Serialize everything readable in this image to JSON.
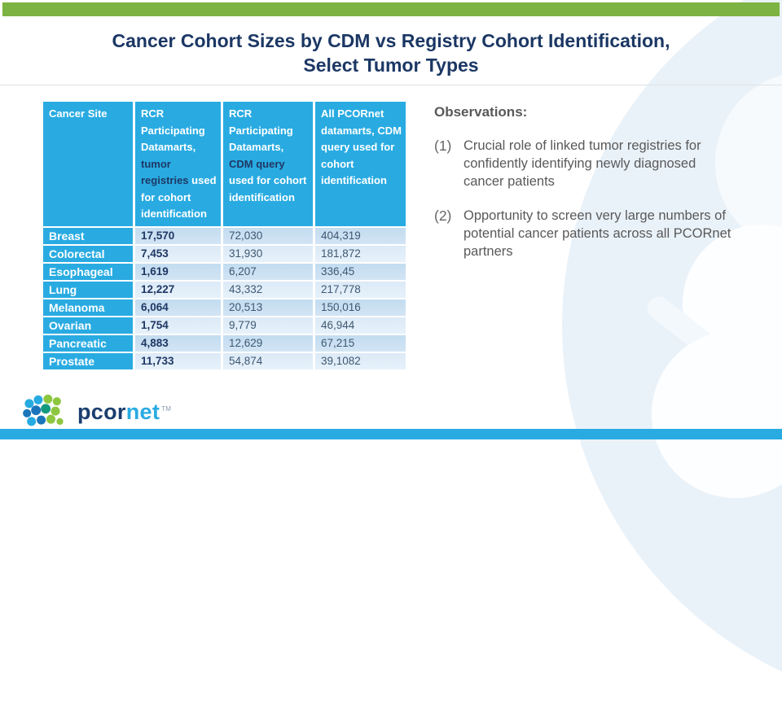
{
  "title": {
    "line1": "Cancer Cohort Sizes by CDM vs Registry Cohort Identification,",
    "line2": "Select Tumor Types"
  },
  "table": {
    "header": {
      "cancer_site": "Cancer Site",
      "col2_pre": "RCR Participating Datamarts,",
      "col2_em": "tumor registries",
      "col2_post": "used for cohort identification",
      "col3_pre": "RCR Participating Datamarts,",
      "col3_em": "CDM query",
      "col3_post": "used for cohort identification",
      "col4": "All PCORnet datamarts, CDM query used for cohort identification"
    },
    "rows": [
      {
        "site": "Breast",
        "rcr_registry": "17,570",
        "rcr_cdm": "72,030",
        "all_pcornet": "404,319"
      },
      {
        "site": "Colorectal",
        "rcr_registry": "7,453",
        "rcr_cdm": "31,930",
        "all_pcornet": "181,872"
      },
      {
        "site": "Esophageal",
        "rcr_registry": "1,619",
        "rcr_cdm": "6,207",
        "all_pcornet": "336,45"
      },
      {
        "site": "Lung",
        "rcr_registry": "12,227",
        "rcr_cdm": "43,332",
        "all_pcornet": "217,778"
      },
      {
        "site": "Melanoma",
        "rcr_registry": "6,064",
        "rcr_cdm": "20,513",
        "all_pcornet": "150,016"
      },
      {
        "site": "Ovarian",
        "rcr_registry": "1,754",
        "rcr_cdm": "9,779",
        "all_pcornet": "46,944"
      },
      {
        "site": "Pancreatic",
        "rcr_registry": "4,883",
        "rcr_cdm": "12,629",
        "all_pcornet": "67,215"
      },
      {
        "site": "Prostate",
        "rcr_registry": "11,733",
        "rcr_cdm": "54,874",
        "all_pcornet": "39,1082"
      }
    ]
  },
  "observations": {
    "title": "Observations:",
    "items": [
      {
        "num": "(1)",
        "text": "Crucial role of linked tumor registries for confidently identifying newly diagnosed cancer patients"
      },
      {
        "num": "(2)",
        "text": "Opportunity to screen very large numbers of potential cancer patients across all PCORnet partners"
      }
    ]
  },
  "logo": {
    "pcor": "pcor",
    "net": "net",
    "tm": "TM"
  },
  "colors": {
    "accent_blue": "#29ABE2",
    "header_green": "#7CB342",
    "title_navy": "#1B3764",
    "header_em_navy": "#1F3864",
    "row_odd": "#C8DFF2",
    "row_even": "#DEEBF7",
    "text_gray": "#595959",
    "logo_green": "#8DC63F",
    "logo_dark_blue": "#1B75BB"
  }
}
